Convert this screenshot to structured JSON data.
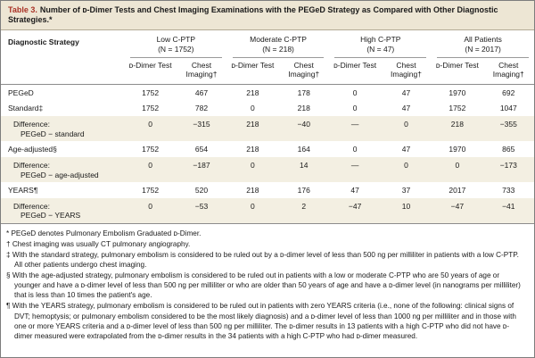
{
  "colors": {
    "accent": "#A93226",
    "band": "#EDE6D4",
    "shade": "#F3EFE2",
    "rule": "#8C8C8C"
  },
  "title": {
    "label": "Table 3.",
    "text": "Number of ᴅ-Dimer Tests and Chest Imaging Examinations with the PEGeD Strategy as Compared with Other Diagnostic Strategies.*"
  },
  "table": {
    "strategy_header": "Diagnostic Strategy",
    "groups": [
      {
        "name": "Low C-PTP",
        "n": "(N = 1752)"
      },
      {
        "name": "Moderate C-PTP",
        "n": "(N = 218)"
      },
      {
        "name": "High C-PTP",
        "n": "(N = 47)"
      },
      {
        "name": "All Patients",
        "n": "(N = 2017)"
      }
    ],
    "subheaders": [
      "ᴅ-Dimer Test",
      "Chest Imaging†"
    ],
    "rows": [
      {
        "label": "PEGeD",
        "label2": "",
        "shaded": false,
        "values": [
          "1752",
          "467",
          "218",
          "178",
          "0",
          "47",
          "1970",
          "692"
        ]
      },
      {
        "label": "Standard‡",
        "label2": "",
        "shaded": false,
        "values": [
          "1752",
          "782",
          "0",
          "218",
          "0",
          "47",
          "1752",
          "1047"
        ]
      },
      {
        "label": "Difference:",
        "label2": "PEGeD − standard",
        "shaded": true,
        "values": [
          "0",
          "−315",
          "218",
          "−40",
          "—",
          "0",
          "218",
          "−355"
        ]
      },
      {
        "label": "Age-adjusted§",
        "label2": "",
        "shaded": false,
        "values": [
          "1752",
          "654",
          "218",
          "164",
          "0",
          "47",
          "1970",
          "865"
        ]
      },
      {
        "label": "Difference:",
        "label2": "PEGeD − age-adjusted",
        "shaded": true,
        "values": [
          "0",
          "−187",
          "0",
          "14",
          "—",
          "0",
          "0",
          "−173"
        ]
      },
      {
        "label": "YEARS¶",
        "label2": "",
        "shaded": false,
        "values": [
          "1752",
          "520",
          "218",
          "176",
          "47",
          "37",
          "2017",
          "733"
        ]
      },
      {
        "label": "Difference:",
        "label2": "PEGeD − YEARS",
        "shaded": true,
        "values": [
          "0",
          "−53",
          "0",
          "2",
          "−47",
          "10",
          "−47",
          "−41"
        ]
      }
    ]
  },
  "footnotes": [
    "* PEGeD denotes Pulmonary Embolism Graduated ᴅ-Dimer.",
    "† Chest imaging was usually CT pulmonary angiography.",
    "‡ With the standard strategy, pulmonary embolism is considered to be ruled out by a ᴅ-dimer level of less than 500 ng per milliliter in patients with a low C-PTP. All other patients undergo chest imaging.",
    "§ With the age-adjusted strategy, pulmonary embolism is considered to be ruled out in patients with a low or moderate C-PTP who are 50 years of age or younger and have a ᴅ-dimer level of less than 500 ng per milliliter or who are older than 50 years of age and have a ᴅ-dimer level (in nanograms per milliliter) that is less than 10 times the patient's age.",
    "¶ With the YEARS strategy, pulmonary embolism is considered to be ruled out in patients with zero YEARS criteria (i.e., none of the following: clinical signs of DVT; hemoptysis; or pulmonary embolism considered to be the most likely diagnosis) and a ᴅ-dimer level of less than 1000 ng per milliliter and in those with one or more YEARS criteria and a ᴅ-dimer level of less than 500 ng per milliliter. The ᴅ-dimer results in 13 patients with a high C-PTP who did not have ᴅ-dimer measured were extrapolated from the ᴅ-dimer results in the 34 patients with a high C-PTP who had ᴅ-dimer measured."
  ]
}
